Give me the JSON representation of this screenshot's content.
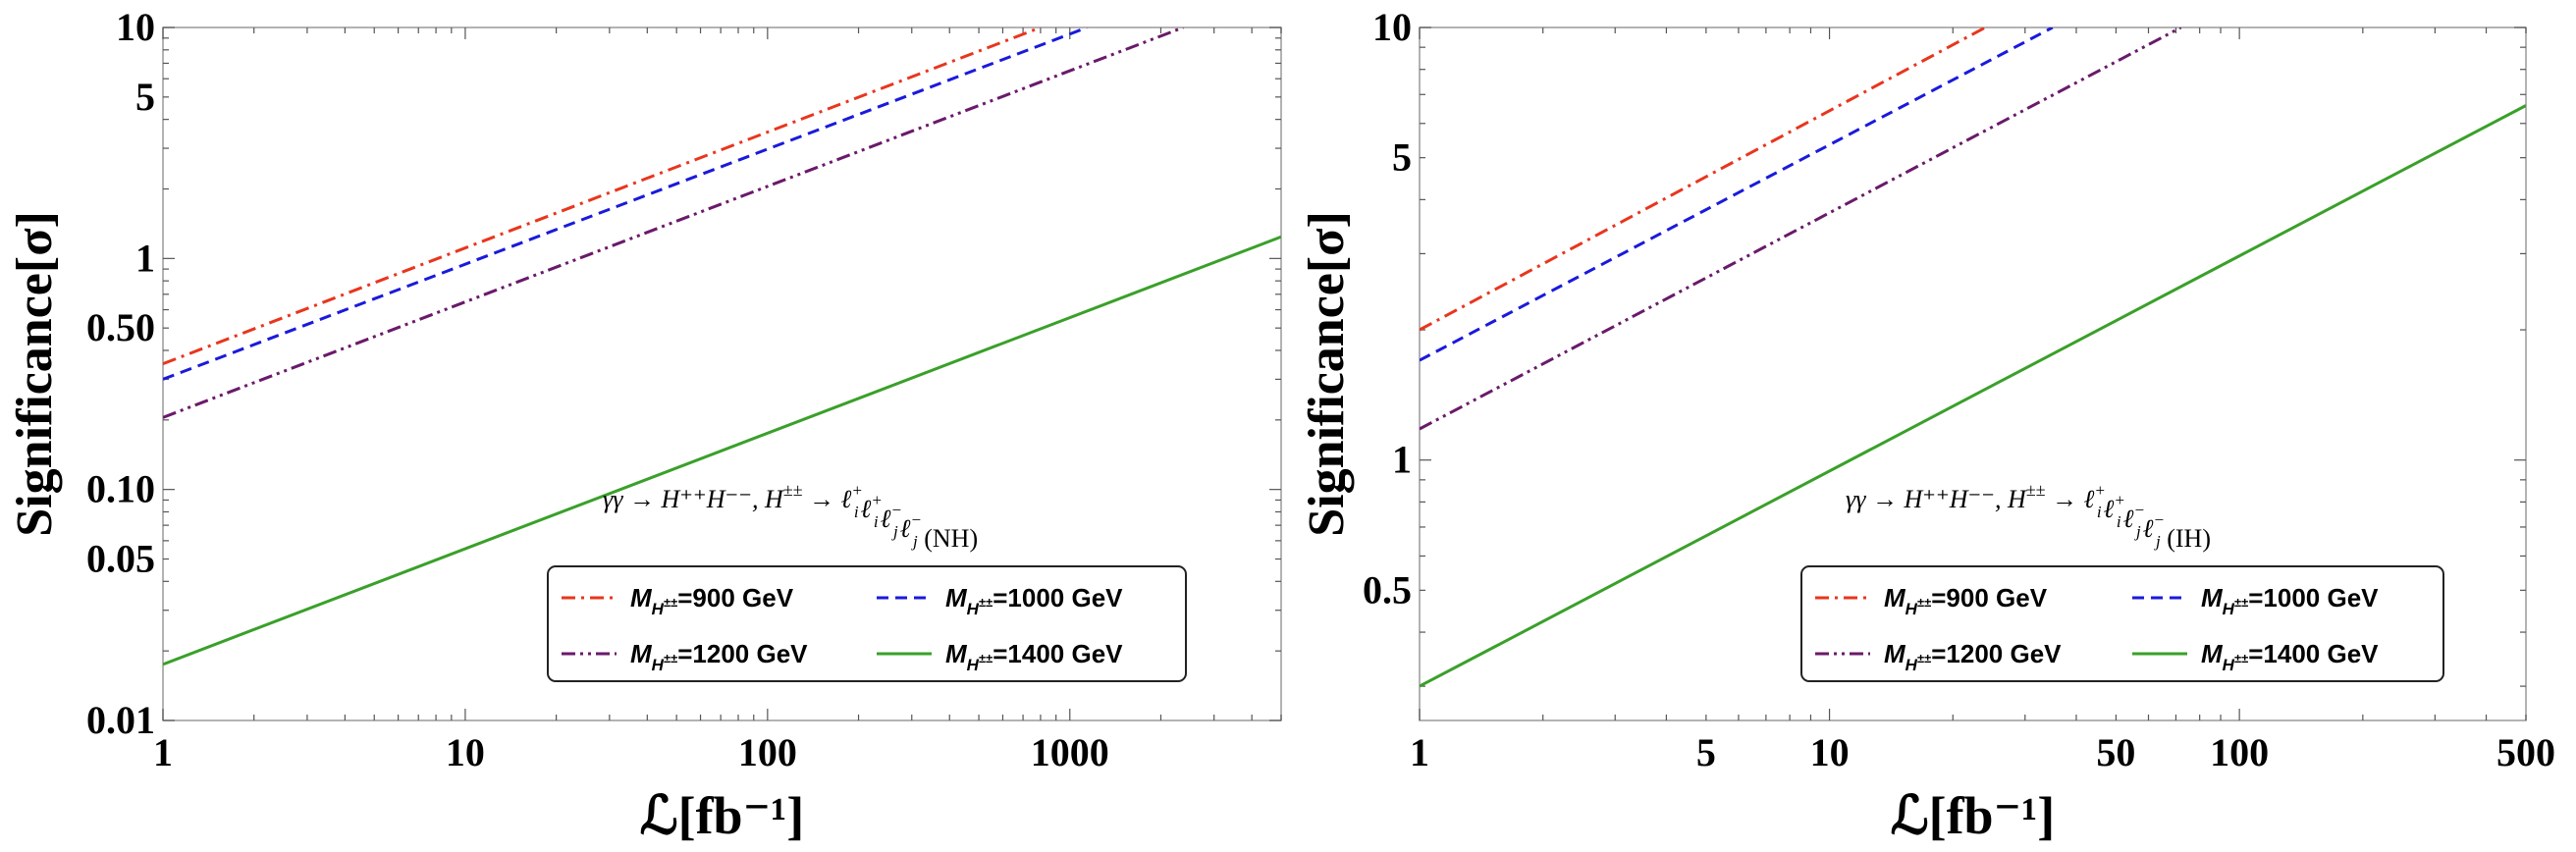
{
  "chart_data": [
    {
      "type": "line",
      "xscale": "log",
      "yscale": "log",
      "xlabel": "ℒ[fb⁻¹]",
      "ylabel": "Significance[σ]",
      "xlim": [
        1,
        5000
      ],
      "ylim": [
        0.01,
        10
      ],
      "xticks": [
        1,
        10,
        100,
        1000
      ],
      "xtick_labels": [
        "1",
        "10",
        "100",
        "1000"
      ],
      "yticks": [
        0.01,
        0.05,
        0.1,
        0.5,
        1,
        5,
        10
      ],
      "ytick_labels": [
        "0.01",
        "0.05",
        "0.10",
        "0.50",
        "1",
        "5",
        "10"
      ],
      "annotation": "γγ → H⁺⁺H⁻⁻, H^±± → ℓ_i⁺ℓ_i⁺ℓ_j⁻ℓ_j⁻ (NH)",
      "annotation_parts": {
        "process": "γγ → H⁺⁺H⁻⁻, H",
        "sup1": "±±",
        "decay": " → ℓ",
        "hierarchy": " (NH)"
      },
      "series": [
        {
          "name": "M_H±± = 900 GeV",
          "mass": "900 GeV",
          "color": "#e8361e",
          "style": "dashdot",
          "x": [
            1,
            800
          ],
          "y": [
            0.35,
            10
          ]
        },
        {
          "name": "M_H±± = 1000 GeV",
          "mass": "1000 GeV",
          "color": "#1a1adc",
          "style": "dashed",
          "x": [
            1,
            1140
          ],
          "y": [
            0.3,
            10
          ]
        },
        {
          "name": "M_H±± = 1200 GeV",
          "mass": "1200 GeV",
          "color": "#6a1a6a",
          "style": "dashdotdot",
          "x": [
            1,
            2370
          ],
          "y": [
            0.205,
            10
          ]
        },
        {
          "name": "M_H±± = 1400 GeV",
          "mass": "1400 GeV",
          "color": "#3aa02a",
          "style": "solid",
          "x": [
            1,
            5000
          ],
          "y": [
            0.0175,
            1.24
          ]
        }
      ]
    },
    {
      "type": "line",
      "xscale": "log",
      "yscale": "log",
      "xlabel": "ℒ[fb⁻¹]",
      "ylabel": "Significance[σ]",
      "xlim": [
        1,
        500
      ],
      "ylim": [
        0.25,
        10
      ],
      "xticks": [
        1,
        5,
        10,
        50,
        100,
        500
      ],
      "xtick_labels": [
        "1",
        "5",
        "10",
        "50",
        "100",
        "500"
      ],
      "yticks": [
        0.5,
        1,
        5,
        10
      ],
      "ytick_labels": [
        "0.5",
        "1",
        "5",
        "10"
      ],
      "annotation": "γγ → H⁺⁺H⁻⁻, H^±± → ℓ_i⁺ℓ_i⁺ℓ_j⁻ℓ_j⁻ (IH)",
      "annotation_parts": {
        "process": "γγ → H⁺⁺H⁻⁻, H",
        "sup1": "±±",
        "decay": " → ℓ",
        "hierarchy": " (IH)"
      },
      "series": [
        {
          "name": "M_H±± = 900 GeV",
          "mass": "900 GeV",
          "color": "#e8361e",
          "style": "dashdot",
          "x": [
            1,
            24
          ],
          "y": [
            2.0,
            10
          ]
        },
        {
          "name": "M_H±± = 1000 GeV",
          "mass": "1000 GeV",
          "color": "#1a1adc",
          "style": "dashed",
          "x": [
            1,
            35
          ],
          "y": [
            1.7,
            10
          ]
        },
        {
          "name": "M_H±± = 1200 GeV",
          "mass": "1200 GeV",
          "color": "#6a1a6a",
          "style": "dashdotdot",
          "x": [
            1,
            72
          ],
          "y": [
            1.18,
            10
          ]
        },
        {
          "name": "M_H±± = 1400 GeV",
          "mass": "1400 GeV",
          "color": "#3aa02a",
          "style": "solid",
          "x": [
            1,
            500
          ],
          "y": [
            0.3,
            6.6
          ]
        }
      ]
    }
  ]
}
